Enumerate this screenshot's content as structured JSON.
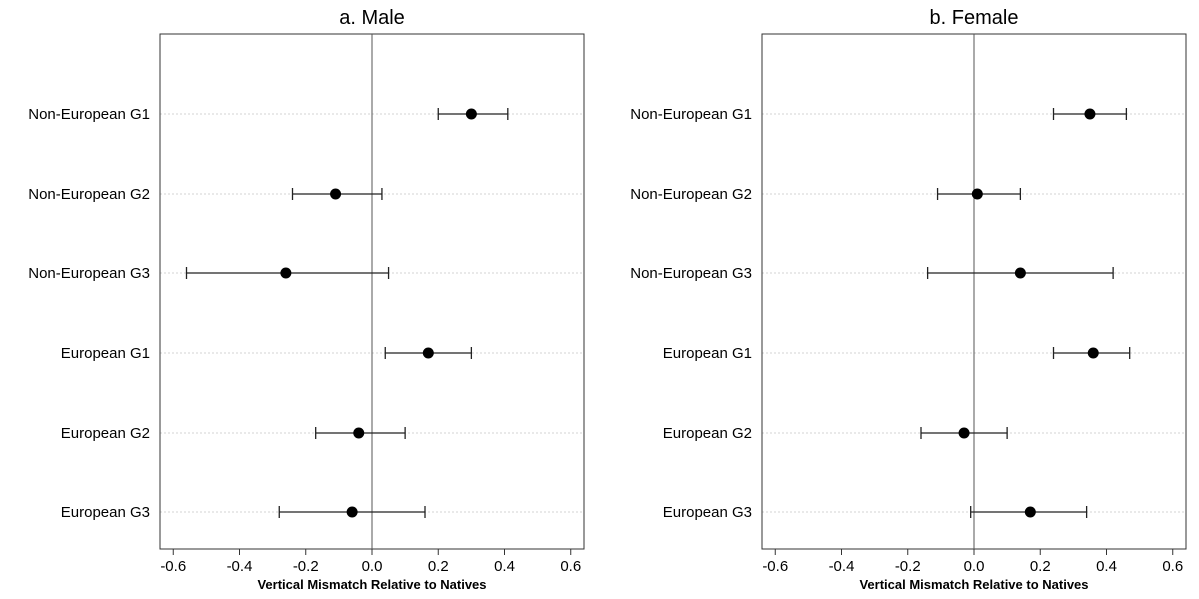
{
  "chart_data": [
    {
      "type": "scatter",
      "title": "a. Male",
      "xlabel": "Vertical Mismatch Relative to Natives",
      "xlim": [
        -0.64,
        0.64
      ],
      "xticks": [
        "-0.6",
        "-0.4",
        "-0.2",
        "0.0",
        "0.2",
        "0.4",
        "0.6"
      ],
      "reference_line_x": 0,
      "gridlines": "horizontal dotted",
      "categories": [
        "Non-European G1",
        "Non-European G2",
        "Non-European G3",
        "European G1",
        "European G2",
        "European G3"
      ],
      "estimates": [
        0.3,
        -0.11,
        -0.26,
        0.17,
        -0.04,
        -0.06
      ],
      "ci_low": [
        0.2,
        -0.24,
        -0.56,
        0.04,
        -0.17,
        -0.28
      ],
      "ci_high": [
        0.41,
        0.03,
        0.05,
        0.3,
        0.1,
        0.16
      ]
    },
    {
      "type": "scatter",
      "title": "b. Female",
      "xlabel": "Vertical Mismatch Relative to Natives",
      "xlim": [
        -0.64,
        0.64
      ],
      "xticks": [
        "-0.6",
        "-0.4",
        "-0.2",
        "0.0",
        "0.2",
        "0.4",
        "0.6"
      ],
      "reference_line_x": 0,
      "gridlines": "horizontal dotted",
      "categories": [
        "Non-European G1",
        "Non-European G2",
        "Non-European G3",
        "European G1",
        "European G2",
        "European G3"
      ],
      "estimates": [
        0.35,
        0.01,
        0.14,
        0.36,
        -0.03,
        0.17
      ],
      "ci_low": [
        0.24,
        -0.11,
        -0.14,
        0.24,
        -0.16,
        -0.01
      ],
      "ci_high": [
        0.46,
        0.14,
        0.42,
        0.47,
        0.1,
        0.34
      ]
    }
  ]
}
